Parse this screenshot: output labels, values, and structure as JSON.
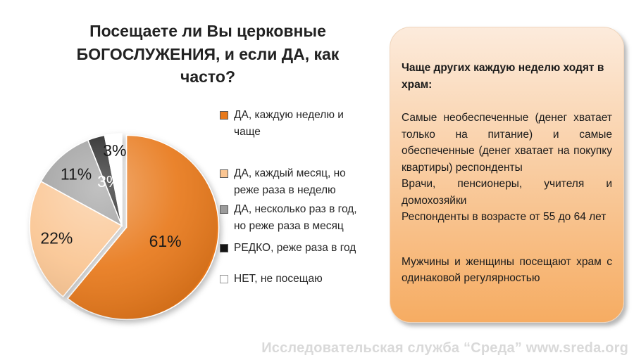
{
  "title": "Посещаете ли Вы церковные БОГОСЛУЖЕНИЯ, и если ДА, как часто?",
  "chart_data": {
    "type": "pie",
    "labels": [
      "ДА, каждую неделю и чаще",
      "ДА, каждый месяц, но реже раза в неделю",
      "ДА, несколько раз в год, но реже раза в месяц",
      "РЕДКО, реже раза в год",
      "НЕТ, не посещаю"
    ],
    "values": [
      61,
      22,
      11,
      3,
      3
    ],
    "data_labels": [
      "61%",
      "22%",
      "11%",
      "3%",
      "3%"
    ],
    "colors": [
      "#E8791B",
      "#FAC592",
      "#9B9B9B",
      "#141414",
      "#FFFFFF"
    ],
    "label_colors": [
      "#1a1a1a",
      "#1a1a1a",
      "#1a1a1a",
      "#ffffff",
      "#1a1a1a"
    ],
    "stroke": "#FFFFFF",
    "start_angle_deg": 0,
    "direction": "clockwise",
    "exploded": [
      1,
      0,
      0,
      0,
      0
    ],
    "legend_position": "right",
    "title": "Посещаете ли Вы церковные БОГОСЛУЖЕНИЯ, и если ДА, как часто?"
  },
  "info_panel": {
    "heading": "Чаще других каждую неделю ходят в храм:",
    "paragraphs": [
      "Самые необеспеченные (денег хватает только на питание) и самые обеспеченные (денег хватает на покупку квартиры) респонденты",
      "Врачи, пенсионеры, учителя и домохозяйки",
      "Респонденты в возрасте от 55 до 64 лет",
      "Мужчины и женщины посещают храм с одинаковой регулярностью"
    ],
    "bg_top": "#FCEBDC",
    "bg_bottom": "#F6AC62",
    "border_color": "#EFD5BC"
  },
  "footer": {
    "credit": "Исследовательская служба “Среда” www.sreda.org",
    "color": "#D9D9D9"
  }
}
